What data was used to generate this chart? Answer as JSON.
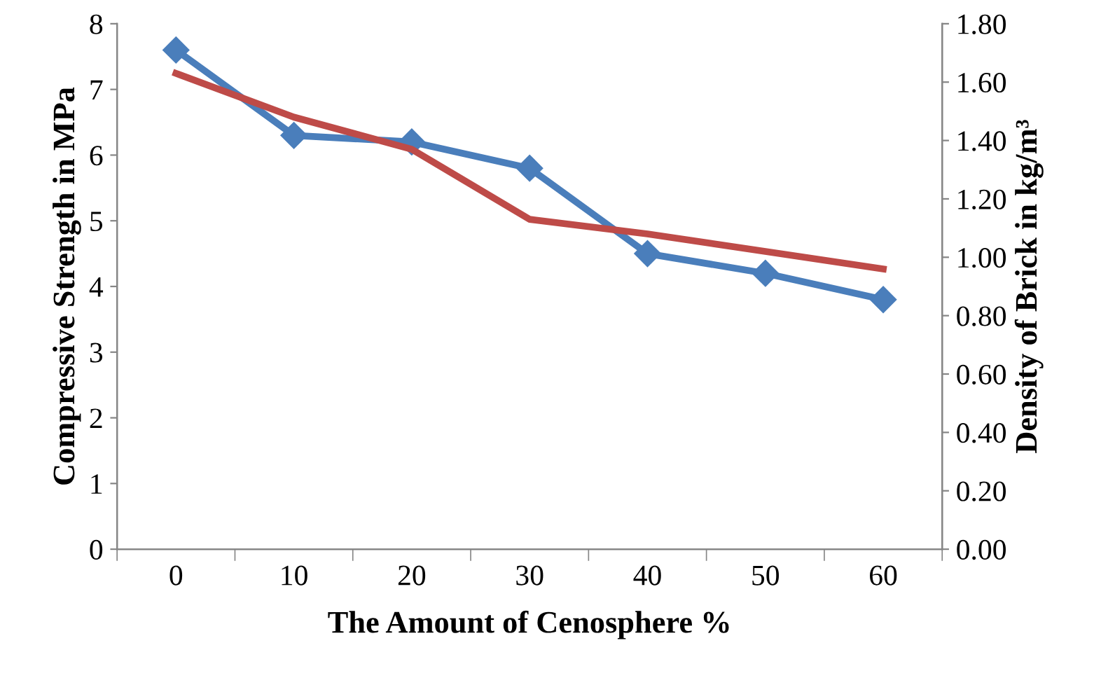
{
  "chart_data": {
    "type": "line",
    "xlabel": "The Amount of Cenosphere %",
    "ylabel": "Compressive Strength in MPa",
    "y2label": "Density of Brick in kg/m³",
    "categories": [
      "0",
      "10",
      "20",
      "30",
      "40",
      "50",
      "60"
    ],
    "series": [
      {
        "color": "#4a7ebb",
        "values": [
          7.6,
          6.3,
          6.2,
          5.8,
          4.5,
          4.2,
          3.8
        ],
        "marker": "diamond"
      },
      {
        "color": "#be4b48",
        "values": [
          1.63,
          1.48,
          1.37,
          1.13,
          1.08,
          1.02,
          0.96
        ],
        "axis": "y2",
        "marker": "none"
      }
    ],
    "ylim": [
      0,
      8
    ],
    "yticks": [
      0,
      1,
      2,
      3,
      4,
      5,
      6,
      7,
      8
    ],
    "y2lim": [
      0,
      1.8
    ],
    "y2ticks": [
      {
        "value": 0,
        "label": "0.00"
      },
      {
        "value": 0.2,
        "label": "0.20"
      },
      {
        "value": 0.4,
        "label": "0.40"
      },
      {
        "value": 0.6,
        "label": "0.60"
      },
      {
        "value": 0.8,
        "label": "0.80"
      },
      {
        "value": 1.0,
        "label": "1.00"
      },
      {
        "value": 1.2,
        "label": "1.20"
      },
      {
        "value": 1.4,
        "label": "1.40"
      },
      {
        "value": 1.6,
        "label": "1.60"
      },
      {
        "value": 1.8,
        "label": "1.80"
      }
    ],
    "grid": false,
    "legend": false,
    "line_style": "solid"
  }
}
